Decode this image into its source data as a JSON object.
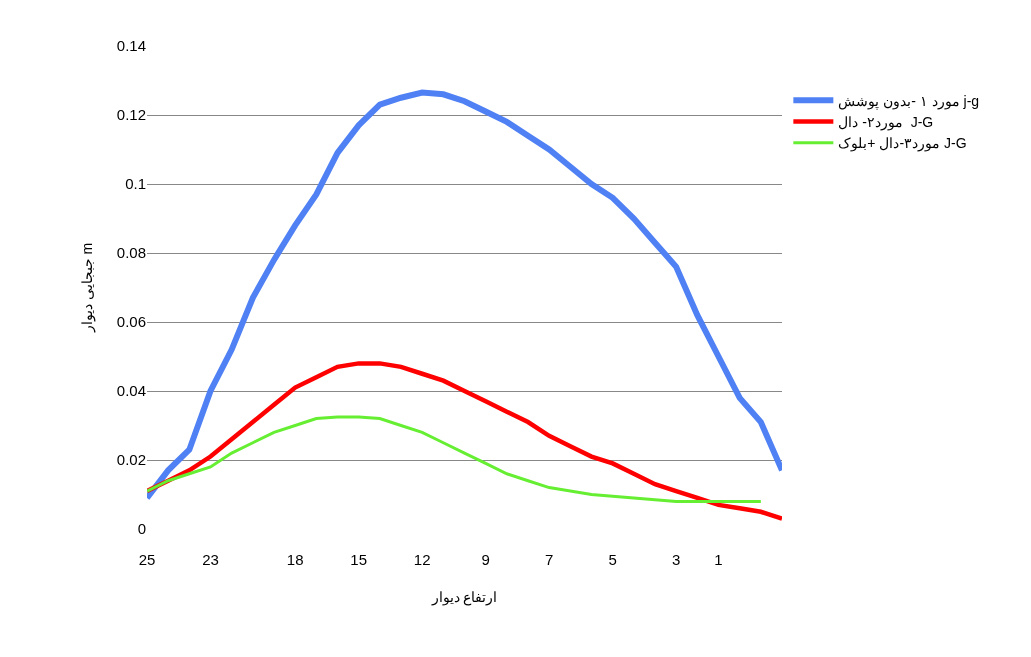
{
  "chart_data": {
    "type": "line",
    "ylabel": "جبجایی دیوار m",
    "xlabel": "ارتفاع دیوار",
    "categories": [
      "25",
      null,
      null,
      "23",
      null,
      null,
      null,
      "18",
      null,
      null,
      "15",
      null,
      null,
      "12",
      null,
      null,
      "9",
      null,
      null,
      "7",
      null,
      null,
      "5",
      null,
      null,
      "3",
      null,
      "1",
      null,
      null,
      null
    ],
    "series": [
      {
        "name": "مورد ۱ -بدون پوشش j-g",
        "color": "#4f81f5",
        "values": [
          0.009,
          0.017,
          0.023,
          0.04,
          0.052,
          0.067,
          0.078,
          0.088,
          0.097,
          0.109,
          0.117,
          0.123,
          0.125,
          0.1265,
          0.126,
          0.124,
          0.121,
          0.118,
          0.114,
          0.11,
          0.105,
          0.1,
          0.096,
          0.09,
          0.083,
          0.076,
          0.062,
          0.05,
          0.038,
          0.031,
          0.017
        ]
      },
      {
        "name": "مورد۲- دال  J-G",
        "color": "#ff0000",
        "values": [
          0.011,
          0.014,
          0.017,
          0.021,
          0.026,
          0.031,
          0.036,
          0.041,
          0.044,
          0.047,
          0.048,
          0.048,
          0.047,
          0.045,
          0.043,
          0.04,
          0.037,
          0.034,
          0.031,
          0.027,
          0.024,
          0.021,
          0.019,
          0.016,
          0.013,
          0.011,
          0.009,
          0.007,
          0.006,
          0.005,
          0.003
        ]
      },
      {
        "name": "مورد۳-دال +بلوک J-G",
        "color": "#66ee33",
        "values": [
          0.011,
          0.014,
          0.016,
          0.018,
          0.022,
          0.025,
          0.028,
          0.03,
          0.032,
          0.0325,
          0.0325,
          0.032,
          0.03,
          0.028,
          0.025,
          0.022,
          0.019,
          0.016,
          0.014,
          0.012,
          0.011,
          0.01,
          0.0095,
          0.009,
          0.0085,
          0.008,
          0.008,
          0.008,
          0.008,
          0.008,
          null
        ]
      }
    ],
    "ylim": [
      0,
      0.14
    ],
    "yticks": [
      0,
      0.02,
      0.04,
      0.06,
      0.08,
      0.1,
      0.12,
      0.14
    ],
    "grid": "y",
    "legend": "right",
    "marker": "none",
    "line_style": "solid"
  }
}
